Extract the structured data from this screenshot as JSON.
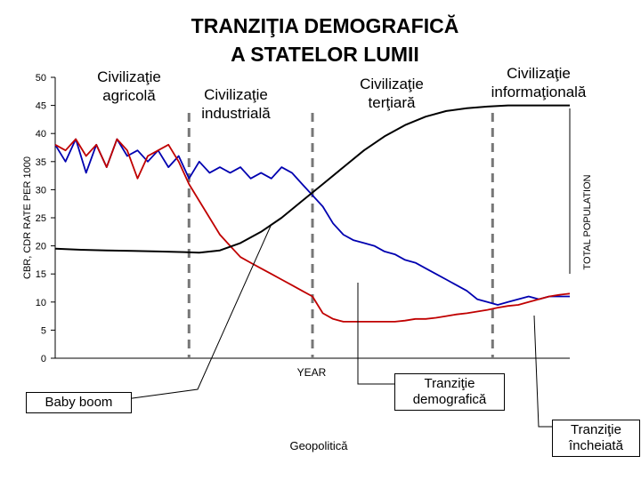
{
  "title_line1": "TRANZIŢIA DEMOGRAFICĂ",
  "title_line2": "A STATELOR LUMII",
  "eras": {
    "agricultural": "Civilizaţie agricolă",
    "industrial": "Civilizaţie industrială",
    "tertiary": "Civilizaţie terţiară",
    "informational": "Civilizaţie informaţională"
  },
  "annotations": {
    "baby_boom": "Baby boom",
    "transition": "Tranziţie demografică",
    "transition_done": "Tranziţie încheiată",
    "footer": "Geopolitică"
  },
  "colors": {
    "cbr": "#c00000",
    "cdr": "#0000b0",
    "population": "#000000",
    "divider": "#777777"
  },
  "chart_data": {
    "type": "line",
    "ylabel": "CBR, CDR RATE PER 1000",
    "y2label": "TOTAL POPULATION",
    "xlabel": "YEAR",
    "ylim": [
      0,
      50
    ],
    "yticks": [
      0,
      5,
      10,
      15,
      20,
      25,
      30,
      35,
      40,
      45,
      50
    ],
    "xlim": [
      0,
      100
    ],
    "era_dividers_x": [
      26,
      50,
      85
    ],
    "series": [
      {
        "key": "cdr",
        "x": [
          0,
          2,
          4,
          6,
          8,
          10,
          12,
          14,
          16,
          18,
          20,
          22,
          24,
          26,
          28,
          30,
          32,
          34,
          36,
          38,
          40,
          42,
          44,
          46,
          48,
          50,
          52,
          54,
          56,
          58,
          60,
          62,
          64,
          66,
          68,
          70,
          72,
          74,
          76,
          78,
          80,
          82,
          84,
          86,
          88,
          90,
          92,
          94,
          96,
          98,
          100
        ],
        "values": [
          38,
          35,
          39,
          33,
          38,
          34,
          39,
          36,
          37,
          35,
          37,
          34,
          36,
          32,
          35,
          33,
          34,
          33,
          34,
          32,
          33,
          32,
          34,
          33,
          31,
          29,
          27,
          24,
          22,
          21,
          20.5,
          20,
          19,
          18.5,
          17.5,
          17,
          16,
          15,
          14,
          13,
          12,
          10.5,
          10,
          9.5,
          10,
          10.5,
          11,
          10.5,
          11,
          11,
          11
        ]
      },
      {
        "key": "cbr",
        "x": [
          0,
          2,
          4,
          6,
          8,
          10,
          12,
          14,
          16,
          18,
          20,
          22,
          24,
          26,
          28,
          30,
          32,
          34,
          36,
          38,
          40,
          42,
          44,
          46,
          48,
          50,
          52,
          54,
          56,
          58,
          60,
          62,
          64,
          66,
          68,
          70,
          72,
          74,
          76,
          78,
          80,
          82,
          84,
          86,
          88,
          90,
          92,
          94,
          96,
          98,
          100
        ],
        "values": [
          38,
          37,
          39,
          36,
          38,
          34,
          39,
          37,
          32,
          36,
          37,
          38,
          35,
          31,
          28,
          25,
          22,
          20,
          18,
          17,
          16,
          15,
          14,
          13,
          12,
          11,
          8,
          7,
          6.5,
          6.5,
          6.5,
          6.5,
          6.5,
          6.5,
          6.7,
          7,
          7,
          7.2,
          7.5,
          7.8,
          8,
          8.3,
          8.6,
          9,
          9.3,
          9.5,
          10,
          10.5,
          11,
          11.3,
          11.5
        ]
      },
      {
        "key": "population",
        "x": [
          0,
          5,
          10,
          15,
          20,
          25,
          28,
          32,
          36,
          40,
          44,
          48,
          52,
          56,
          60,
          64,
          68,
          72,
          76,
          80,
          84,
          88,
          92,
          96,
          100
        ],
        "values": [
          19.5,
          19.3,
          19.2,
          19.1,
          19,
          18.9,
          18.8,
          19.2,
          20.5,
          22.5,
          25,
          28,
          31,
          34,
          37,
          39.5,
          41.5,
          43,
          44,
          44.5,
          44.8,
          45,
          45,
          45,
          45
        ]
      }
    ]
  }
}
